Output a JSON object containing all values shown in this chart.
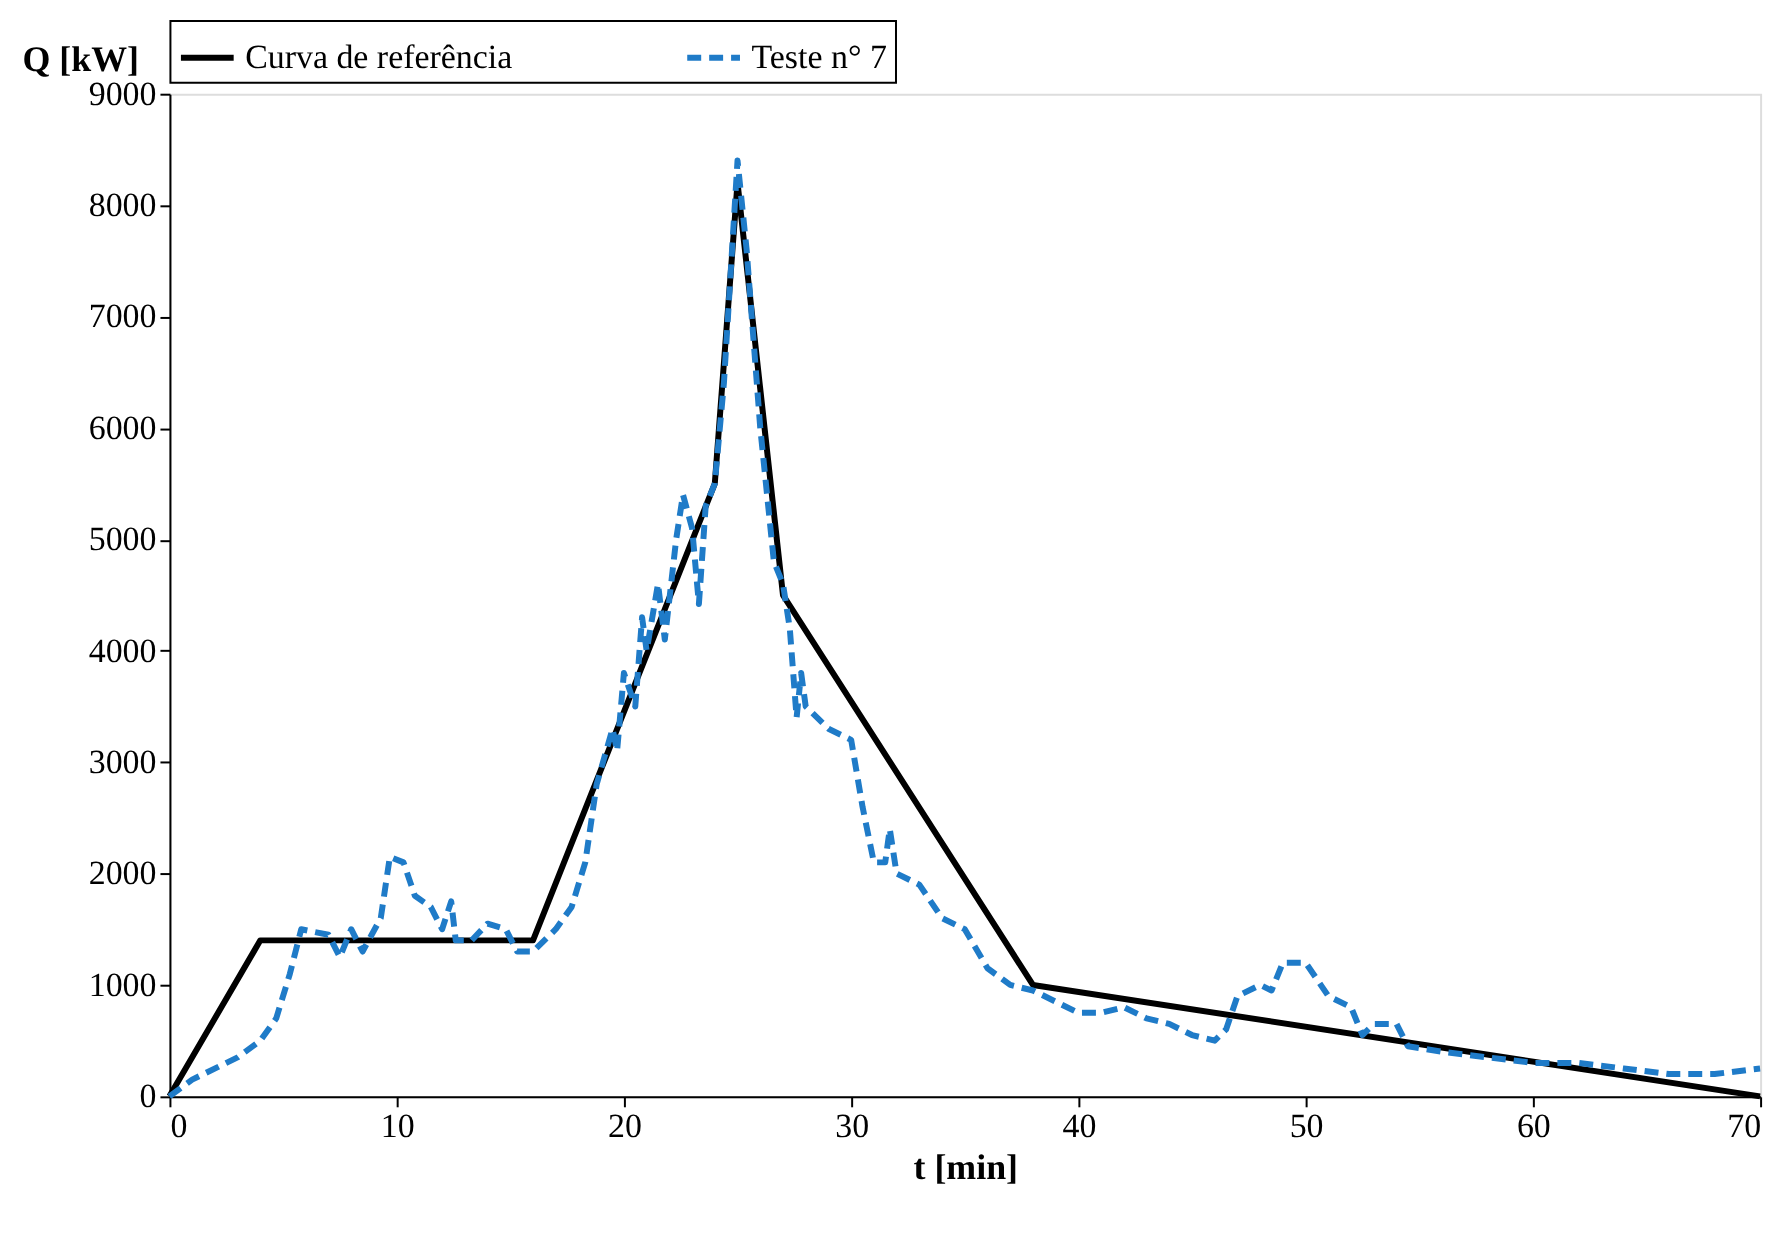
{
  "chart_data": {
    "type": "line",
    "xlabel": "t [min]",
    "ylabel": "Q [kW]",
    "xlim": [
      0,
      70
    ],
    "ylim": [
      0,
      9000
    ],
    "xticks": [
      0,
      10,
      20,
      30,
      40,
      50,
      60,
      70
    ],
    "yticks": [
      0,
      1000,
      2000,
      3000,
      4000,
      5000,
      6000,
      7000,
      8000,
      9000
    ],
    "grid": false,
    "legend": "top",
    "marker": "none",
    "series": [
      {
        "name": "Curva de referência",
        "color": "#000000",
        "line_style": "solid",
        "x": [
          0,
          4,
          16,
          24,
          25,
          27,
          38,
          70
        ],
        "values": [
          0,
          1400,
          1400,
          5500,
          8200,
          4500,
          1000,
          0
        ]
      },
      {
        "name": "Teste n° 7",
        "color": "#1f7bc8",
        "line_style": "dashed",
        "x": [
          0,
          1,
          3,
          4,
          4.7,
          5.3,
          5.8,
          7,
          7.5,
          8,
          8.5,
          9.3,
          9.7,
          10.3,
          10.8,
          11.5,
          12,
          12.4,
          12.6,
          13.3,
          14,
          14.8,
          15.3,
          16,
          17,
          17.7,
          18.3,
          18.8,
          19.5,
          19.7,
          20,
          20.5,
          20.8,
          21,
          21.5,
          21.8,
          22.3,
          22.6,
          23,
          23.3,
          23.6,
          24,
          24.4,
          25,
          25.4,
          26,
          26.6,
          27,
          27.3,
          27.6,
          27.8,
          28,
          29,
          30,
          30.5,
          31,
          31.5,
          31.7,
          32,
          33,
          34,
          35,
          36,
          37,
          38,
          39,
          40,
          41,
          42,
          43,
          44,
          45,
          46,
          46.5,
          47,
          48,
          48.5,
          49,
          50,
          51,
          52,
          52.5,
          53,
          54,
          54.5,
          56,
          58,
          60,
          62,
          64,
          66,
          68,
          70
        ],
        "values": [
          0,
          150,
          350,
          500,
          700,
          1100,
          1500,
          1450,
          1250,
          1500,
          1300,
          1600,
          2150,
          2100,
          1800,
          1700,
          1500,
          1750,
          1400,
          1400,
          1550,
          1500,
          1300,
          1300,
          1500,
          1700,
          2100,
          2800,
          3300,
          3100,
          3800,
          3500,
          4300,
          4000,
          4600,
          4100,
          5000,
          5400,
          5100,
          4420,
          5300,
          5500,
          6400,
          8400,
          7600,
          6000,
          4800,
          4600,
          4200,
          3400,
          3800,
          3500,
          3300,
          3200,
          2600,
          2100,
          2100,
          2400,
          2000,
          1900,
          1600,
          1500,
          1150,
          1000,
          950,
          850,
          750,
          750,
          800,
          700,
          650,
          550,
          500,
          600,
          900,
          1000,
          950,
          1200,
          1200,
          900,
          800,
          550,
          650,
          650,
          450,
          400,
          350,
          300,
          300,
          250,
          200,
          200,
          250
        ]
      }
    ]
  }
}
